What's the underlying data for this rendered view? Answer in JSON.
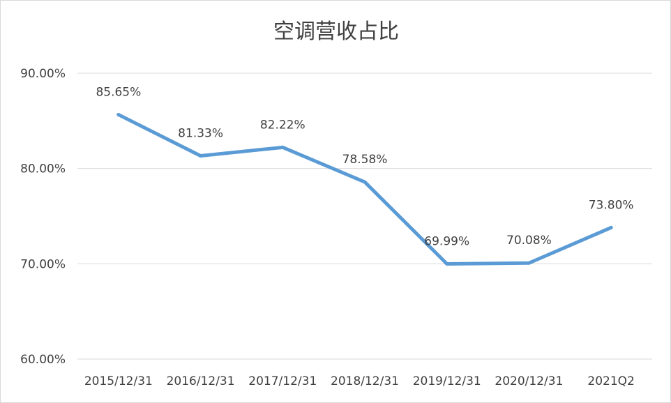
{
  "chart_data": {
    "type": "line",
    "title": "空调营收占比",
    "categories": [
      "2015/12/31",
      "2016/12/31",
      "2017/12/31",
      "2018/12/31",
      "2019/12/31",
      "2020/12/31",
      "2021Q2"
    ],
    "series": [
      {
        "values": [
          85.65,
          81.33,
          82.22,
          78.58,
          69.99,
          70.08,
          73.8
        ],
        "labels": [
          "85.65%",
          "81.33%",
          "82.22%",
          "78.58%",
          "69.99%",
          "70.08%",
          "73.80%"
        ]
      }
    ],
    "ylim": [
      60,
      90
    ],
    "yticks": [
      90,
      80,
      70,
      60
    ],
    "ytick_labels": [
      "90.00%",
      "80.00%",
      "70.00%",
      "60.00%"
    ],
    "grid": true,
    "colors": {
      "line": "#5b9bd5",
      "grid": "#d9d9d9",
      "text": "#404040"
    }
  }
}
